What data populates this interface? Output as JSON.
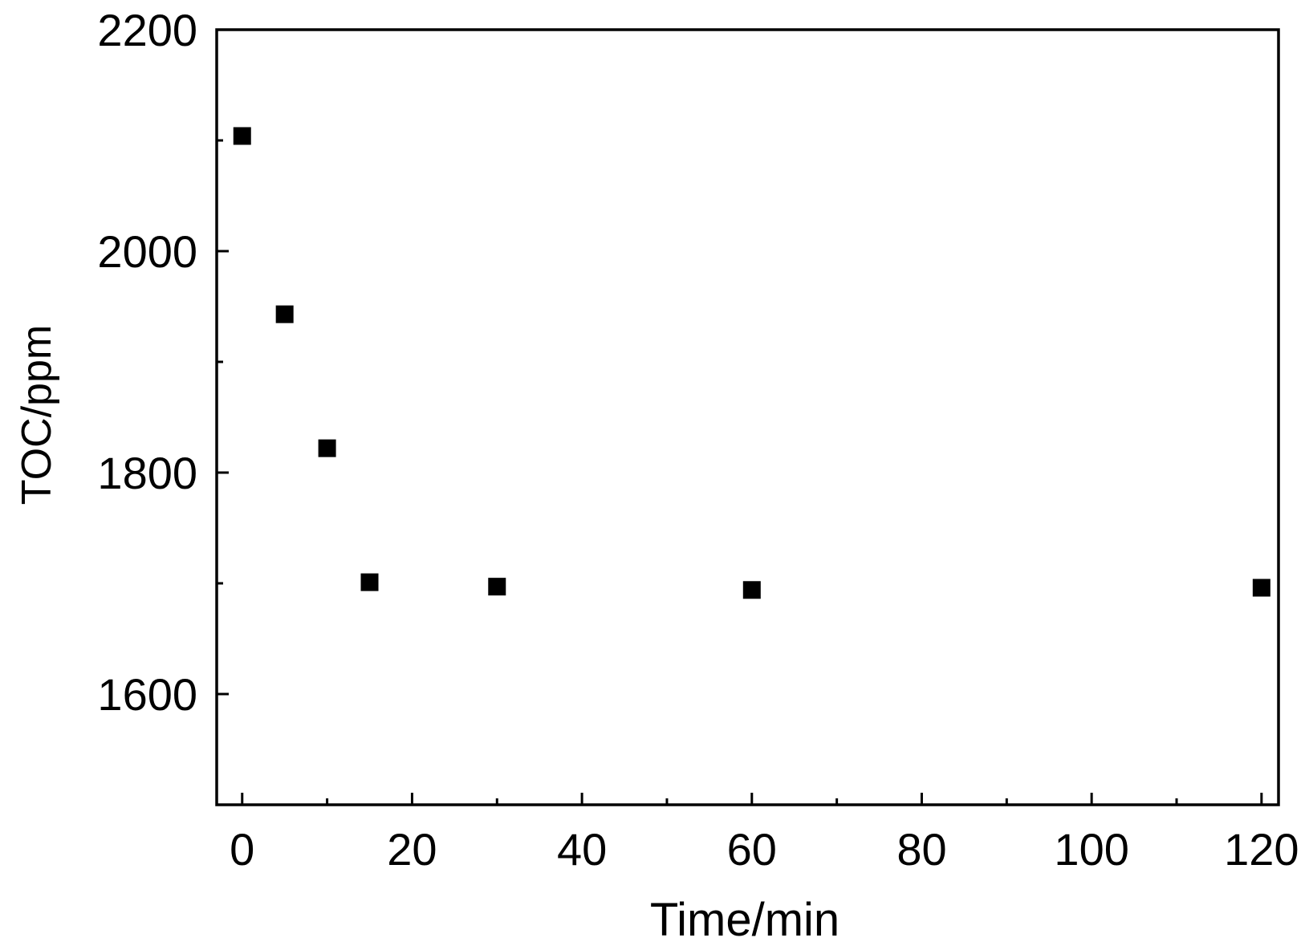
{
  "chart_data": {
    "type": "scatter",
    "title": "",
    "xlabel": "Time/min",
    "ylabel": "TOC/ppm",
    "xlim": [
      -3,
      122
    ],
    "ylim": [
      1500,
      2200
    ],
    "x_major_ticks": [
      0,
      20,
      40,
      60,
      80,
      100,
      120
    ],
    "x_minor_ticks": [
      10,
      30,
      50,
      70,
      90,
      110
    ],
    "y_major_ticks": [
      1600,
      1800,
      2000,
      2200
    ],
    "y_minor_ticks": [
      1700,
      1900,
      2100
    ],
    "x_tick_labels": [
      "0",
      "20",
      "40",
      "60",
      "80",
      "100",
      "120"
    ],
    "y_tick_labels": [
      "1600",
      "1800",
      "2000",
      "2200"
    ],
    "grid": false,
    "legend": false,
    "marker": "square",
    "colors": {
      "marker": "#000000",
      "axes": "#000000",
      "background": "#ffffff"
    },
    "series": [
      {
        "x": [
          0,
          5,
          10,
          15,
          30,
          60,
          120
        ],
        "y": [
          2104,
          1943,
          1822,
          1701,
          1697,
          1694,
          1696
        ]
      }
    ]
  }
}
